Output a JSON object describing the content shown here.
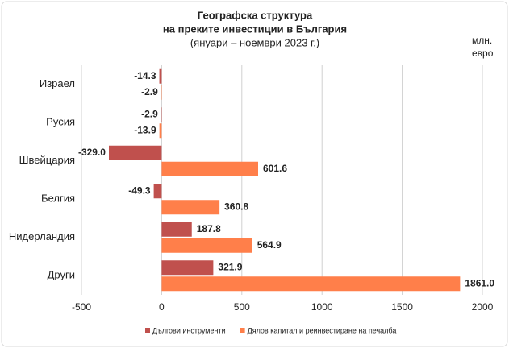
{
  "chart_data": {
    "type": "hbar",
    "title": [
      "Географска структура",
      "на преките инвестиции в България",
      "(януари – ноември 2023 г.)"
    ],
    "unit": [
      "млн.",
      "евро"
    ],
    "categories": [
      "Израел",
      "Русия",
      "Швейцария",
      "Белгия",
      "Нидерландия",
      "Други"
    ],
    "series": [
      {
        "name": "Дългови инструменти",
        "color": "#c0504d",
        "values": [
          -14.3,
          -2.9,
          -329.0,
          -49.3,
          187.8,
          321.9
        ],
        "value_labels": [
          "-14.3",
          "-2.9",
          "-329.0",
          "-49.3",
          "187.8",
          "321.9"
        ]
      },
      {
        "name": "Дялов капитал и реинвестиране на печалба",
        "color": "#ff7f4a",
        "values": [
          -2.9,
          -13.9,
          601.6,
          360.8,
          564.9,
          1861.0
        ],
        "value_labels": [
          "-2.9",
          "-13.9",
          "601.6",
          "360.8",
          "564.9",
          "1861.0"
        ]
      }
    ],
    "xlim": [
      -500,
      2000
    ],
    "xticks": [
      -500,
      0,
      500,
      1000,
      1500,
      2000
    ],
    "grid": true
  }
}
